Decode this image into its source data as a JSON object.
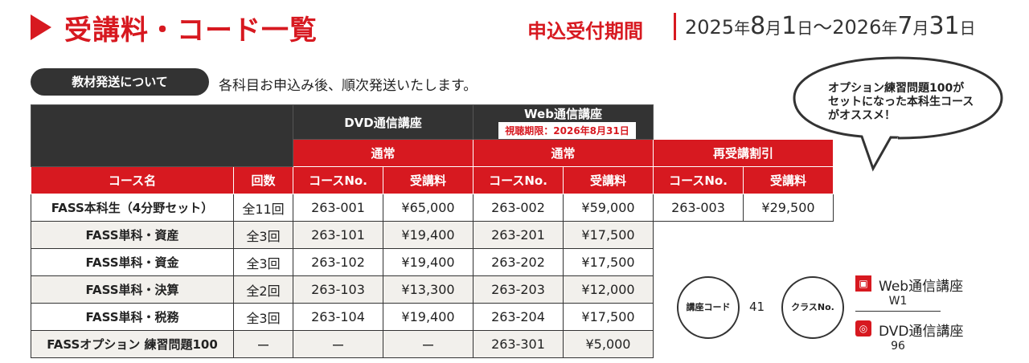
{
  "title": "受講料・コード一覧",
  "period": {
    "label": "申込受付期間",
    "start_year": "2025",
    "start_month": "8",
    "start_day": "1",
    "separator": "～",
    "end_year": "2026",
    "end_month": "7",
    "end_day": "31",
    "year_unit": "年",
    "month_unit": "月",
    "day_unit": "日"
  },
  "shipping": {
    "label": "教材発送について",
    "note": "各科目お申込み後、順次発送いたします。"
  },
  "bubble": {
    "line1": "オプション練習問題100が",
    "line2": "セットになった本科生コース",
    "line3": "がオススメ！"
  },
  "table": {
    "header": {
      "dvd": "DVD通信講座",
      "web": "Web通信講座",
      "web_badge": "視聴期限：2026年8月31日",
      "normal": "通常",
      "retake": "再受講割引",
      "course_name": "コース名",
      "sessions": "回数",
      "course_no": "コースNo.",
      "fee": "受講料"
    },
    "rows": [
      {
        "name": "FASS本科生（4分野セット）",
        "sessions": "全11回",
        "dvd_no": "263-001",
        "dvd_fee": "¥65,000",
        "web_no": "263-002",
        "web_fee": "¥59,000",
        "re_no": "263-003",
        "re_fee": "¥29,500"
      },
      {
        "name": "FASS単科・資産",
        "sessions": "全3回",
        "dvd_no": "263-101",
        "dvd_fee": "¥19,400",
        "web_no": "263-201",
        "web_fee": "¥17,500"
      },
      {
        "name": "FASS単科・資金",
        "sessions": "全3回",
        "dvd_no": "263-102",
        "dvd_fee": "¥19,400",
        "web_no": "263-202",
        "web_fee": "¥17,500"
      },
      {
        "name": "FASS単科・決算",
        "sessions": "全2回",
        "dvd_no": "263-103",
        "dvd_fee": "¥13,300",
        "web_no": "263-203",
        "web_fee": "¥12,000"
      },
      {
        "name": "FASS単科・税務",
        "sessions": "全3回",
        "dvd_no": "263-104",
        "dvd_fee": "¥19,400",
        "web_no": "263-204",
        "web_fee": "¥17,500"
      },
      {
        "name": "FASSオプション 練習問題100",
        "sessions": "ー",
        "dvd_no": "ー",
        "dvd_fee": "ー",
        "web_no": "263-301",
        "web_fee": "¥5,000"
      }
    ]
  },
  "codes": {
    "course_code_label": "講座コード",
    "course_code_value": "41",
    "class_no_label": "クラスNo.",
    "web_label": "Web通信講座",
    "web_code": "W1",
    "dvd_label": "DVD通信講座",
    "dvd_code": "96"
  }
}
